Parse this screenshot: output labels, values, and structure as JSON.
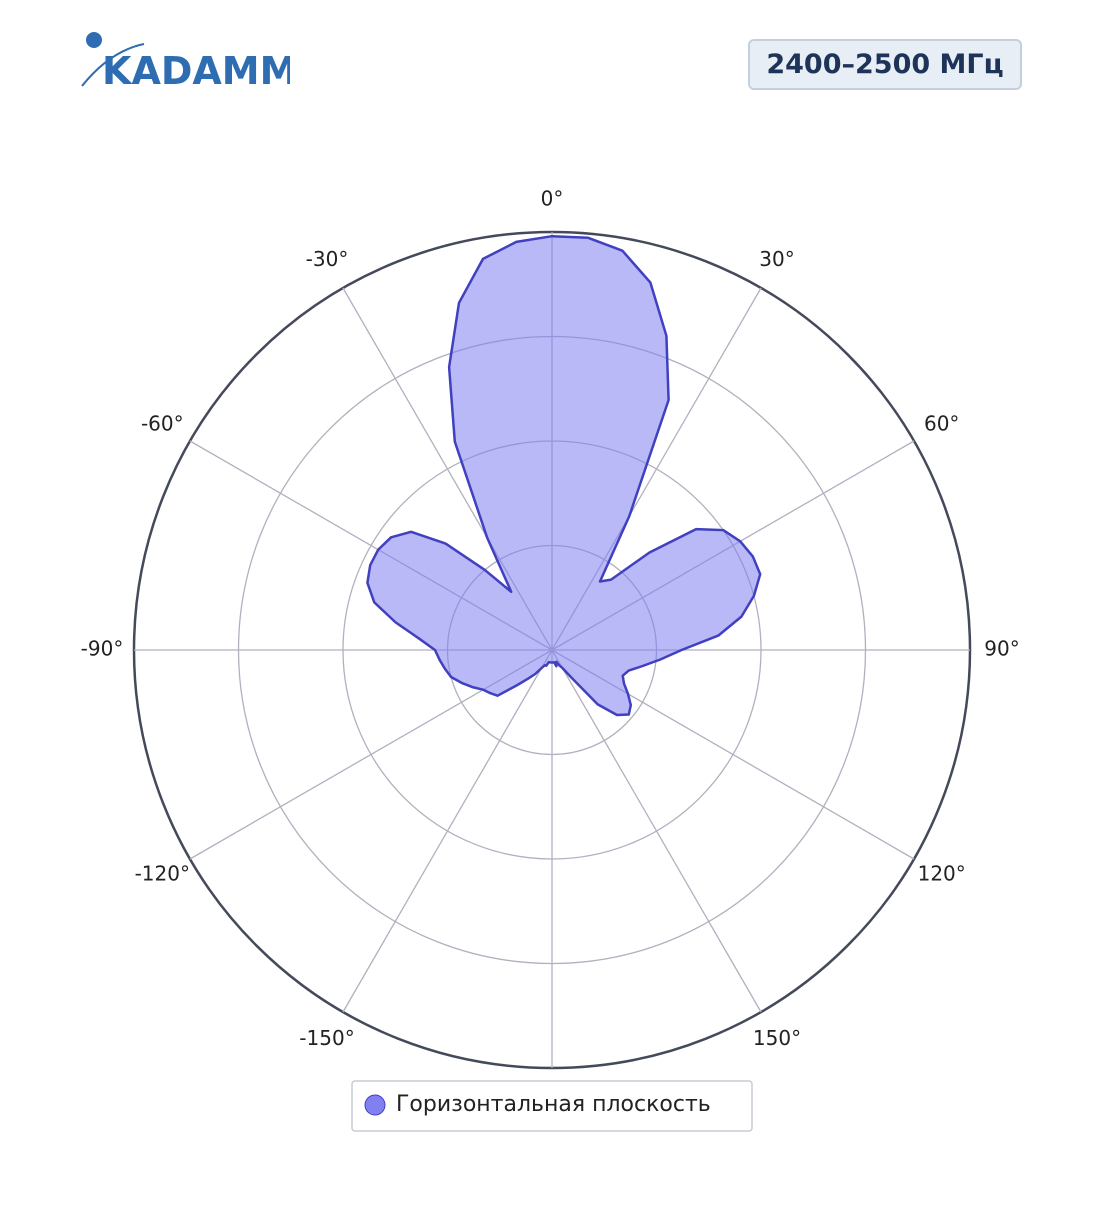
{
  "header": {
    "logo": "KADAMM",
    "badge": "2400–2500 МГц"
  },
  "chart_data": {
    "type": "polar",
    "direction": "clockwise",
    "zero": "top",
    "theta": [
      -180,
      -175,
      -170,
      -165,
      -160,
      -155,
      -150,
      -145,
      -140,
      -135,
      -130,
      -125,
      -120,
      -115,
      -110,
      -105,
      -100,
      -95,
      -90,
      -85,
      -80,
      -75,
      -70,
      -65,
      -60,
      -55,
      -50,
      -45,
      -40,
      -35,
      -30,
      -25,
      -20,
      -15,
      -10,
      -5,
      0,
      5,
      10,
      15,
      20,
      25,
      30,
      35,
      40,
      45,
      50,
      55,
      60,
      65,
      70,
      75,
      80,
      85,
      90,
      95,
      100,
      105,
      110,
      115,
      120,
      125,
      130,
      135,
      140,
      145,
      150,
      155,
      160,
      165,
      170,
      175
    ],
    "series": [
      {
        "name": "Горизонтальная плоскость",
        "color": "#8080f0",
        "line_color": "#4040c0",
        "values": [
          0.03,
          0.03,
          0.03,
          0.03,
          0.04,
          0.04,
          0.05,
          0.07,
          0.09,
          0.12,
          0.17,
          0.18,
          0.19,
          0.21,
          0.23,
          0.25,
          0.26,
          0.27,
          0.28,
          0.32,
          0.38,
          0.44,
          0.47,
          0.48,
          0.48,
          0.47,
          0.44,
          0.36,
          0.25,
          0.17,
          0.31,
          0.55,
          0.72,
          0.86,
          0.95,
          0.98,
          0.99,
          0.99,
          0.97,
          0.91,
          0.8,
          0.66,
          0.37,
          0.2,
          0.22,
          0.33,
          0.45,
          0.5,
          0.52,
          0.53,
          0.53,
          0.5,
          0.46,
          0.4,
          0.31,
          0.26,
          0.22,
          0.19,
          0.18,
          0.19,
          0.21,
          0.23,
          0.24,
          0.22,
          0.17,
          0.08,
          0.05,
          0.04,
          0.03,
          0.04,
          0.03,
          0.03
        ]
      }
    ],
    "rlim": [
      0,
      1
    ],
    "rticks": [
      0.25,
      0.5,
      0.75,
      1
    ],
    "thetaticks": [
      {
        "value": -150,
        "label": "-150°"
      },
      {
        "value": -120,
        "label": "-120°"
      },
      {
        "value": -90,
        "label": "-90°"
      },
      {
        "value": -60,
        "label": "-60°"
      },
      {
        "value": -30,
        "label": "-30°"
      },
      {
        "value": 0,
        "label": "0°"
      },
      {
        "value": 30,
        "label": "30°"
      },
      {
        "value": 60,
        "label": "60°"
      },
      {
        "value": 90,
        "label": "90°"
      },
      {
        "value": 120,
        "label": "120°"
      },
      {
        "value": 150,
        "label": "150°"
      },
      {
        "value": 180,
        "label": null
      }
    ]
  }
}
